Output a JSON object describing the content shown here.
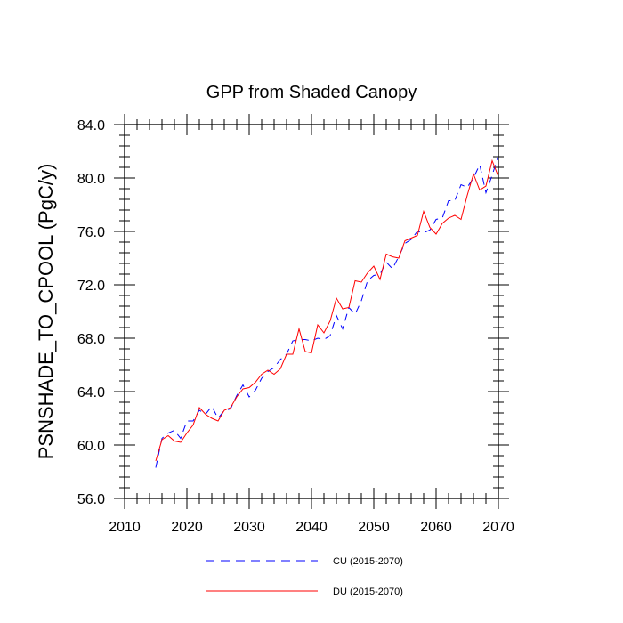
{
  "chart_data": {
    "type": "line",
    "title": "GPP from Shaded Canopy",
    "xlabel": "",
    "ylabel": "PSNSHADE_TO_CPOOL  (PgC/y)",
    "xlim": [
      2010,
      2070
    ],
    "ylim": [
      56.0,
      84.0
    ],
    "x_ticks": [
      2010,
      2020,
      2030,
      2040,
      2050,
      2060,
      2070
    ],
    "x_tick_labels": [
      "2010",
      "2020",
      "2030",
      "2040",
      "2050",
      "2060",
      "2070"
    ],
    "y_ticks": [
      56.0,
      60.0,
      64.0,
      68.0,
      72.0,
      76.0,
      80.0,
      84.0
    ],
    "y_tick_labels": [
      "56.0",
      "60.0",
      "64.0",
      "68.0",
      "72.0",
      "76.0",
      "80.0",
      "84.0"
    ],
    "legend_position": "bottom",
    "x": [
      2015,
      2016,
      2017,
      2018,
      2019,
      2020,
      2021,
      2022,
      2023,
      2024,
      2025,
      2026,
      2027,
      2028,
      2029,
      2030,
      2031,
      2032,
      2033,
      2034,
      2035,
      2036,
      2037,
      2038,
      2039,
      2040,
      2041,
      2042,
      2043,
      2044,
      2045,
      2046,
      2047,
      2048,
      2049,
      2050,
      2051,
      2052,
      2053,
      2054,
      2055,
      2056,
      2057,
      2058,
      2059,
      2060,
      2061,
      2062,
      2063,
      2064,
      2065,
      2066,
      2067,
      2068,
      2069,
      2070
    ],
    "series": [
      {
        "name": "CU (2015-2070)",
        "color": "#0000ff",
        "dash": "dashed",
        "values": [
          58.3,
          60.5,
          60.9,
          61.1,
          60.5,
          61.8,
          61.8,
          62.6,
          62.3,
          62.9,
          62.0,
          62.6,
          62.7,
          63.7,
          64.5,
          63.6,
          64.1,
          65.0,
          65.5,
          65.8,
          66.4,
          66.8,
          67.8,
          67.9,
          67.9,
          67.8,
          68.0,
          67.9,
          68.2,
          69.7,
          68.7,
          70.3,
          69.8,
          70.8,
          72.3,
          72.7,
          72.8,
          73.7,
          73.2,
          74.1,
          75.1,
          75.4,
          76.0,
          75.9,
          76.1,
          76.9,
          77.0,
          78.3,
          78.3,
          79.5,
          79.3,
          80.0,
          81.0,
          78.9,
          80.2,
          81.7
        ]
      },
      {
        "name": "DU (2015-2070)",
        "color": "#ff0000",
        "dash": "solid",
        "values": [
          58.8,
          60.4,
          60.7,
          60.3,
          60.2,
          60.9,
          61.5,
          62.8,
          62.3,
          62.0,
          61.8,
          62.6,
          62.8,
          63.6,
          64.2,
          64.3,
          64.7,
          65.3,
          65.6,
          65.3,
          65.7,
          66.8,
          66.8,
          68.7,
          67.0,
          66.9,
          69.0,
          68.4,
          69.3,
          71.0,
          70.2,
          70.3,
          72.3,
          72.2,
          72.9,
          73.4,
          72.4,
          74.3,
          74.1,
          74.0,
          75.3,
          75.5,
          75.7,
          77.5,
          76.3,
          75.8,
          76.6,
          77.0,
          77.2,
          76.9,
          78.7,
          80.3,
          79.1,
          79.4,
          81.3,
          80.1
        ]
      }
    ]
  }
}
